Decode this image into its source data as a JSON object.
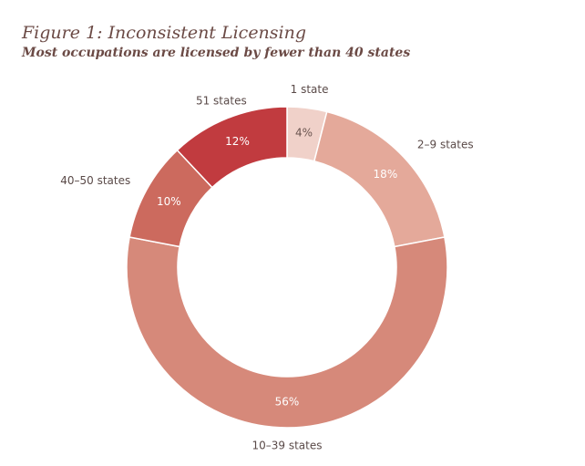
{
  "chart_data": {
    "type": "donut",
    "title": "Figure 1: Inconsistent Licensing",
    "subtitle": "Most occupations are licensed by fewer than 40 states",
    "categories": [
      "1 state",
      "2–9 states",
      "10–39 states",
      "40–50 states",
      "51 states"
    ],
    "values": [
      4,
      18,
      56,
      10,
      12
    ],
    "value_labels": [
      "4%",
      "18%",
      "56%",
      "10%",
      "12%"
    ],
    "colors": [
      "#f0d1c9",
      "#e4a99a",
      "#d6897a",
      "#cc6a5e",
      "#c13b3f"
    ]
  }
}
